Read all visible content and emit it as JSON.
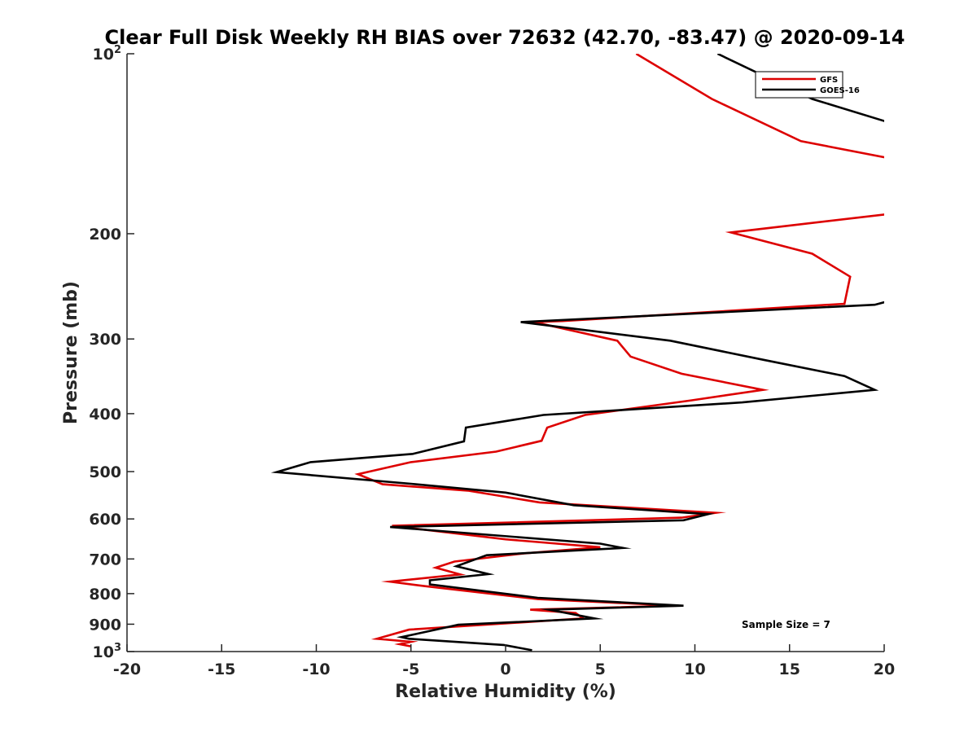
{
  "chart_data": {
    "type": "line",
    "title": "Clear Full Disk Weekly RH BIAS over 72632 (42.70, -83.47) @ 2020-09-14",
    "xlabel": "Relative Humidity (%)",
    "ylabel": "Pressure (mb)",
    "xlim": [
      -20,
      20
    ],
    "ylim": [
      100,
      1000
    ],
    "y_scale": "log",
    "y_reversed": true,
    "x_ticks": [
      "-20",
      "-15",
      "-10",
      "-5",
      "0",
      "5",
      "10",
      "15",
      "20"
    ],
    "y_ticks": [
      {
        "value": 100,
        "base": "10",
        "exp": "2"
      },
      {
        "value": 200,
        "label": "200"
      },
      {
        "value": 300,
        "label": "300"
      },
      {
        "value": 400,
        "label": "400"
      },
      {
        "value": 500,
        "label": "500"
      },
      {
        "value": 600,
        "label": "600"
      },
      {
        "value": 700,
        "label": "700"
      },
      {
        "value": 800,
        "label": "800"
      },
      {
        "value": 900,
        "label": "900"
      },
      {
        "value": 1000,
        "base": "10",
        "exp": "3"
      }
    ],
    "legend_position": "top-right",
    "annotation": "Sample Size = 7",
    "series": [
      {
        "name": "GFS",
        "color": "#dd0000",
        "points": [
          [
            6.9,
            100
          ],
          [
            10.9,
            119
          ],
          [
            15.6,
            140
          ],
          [
            20.5,
            150
          ],
          [
            20.5,
            185
          ],
          [
            11.9,
            199
          ],
          [
            16.2,
            216
          ],
          [
            18.2,
            236
          ],
          [
            17.9,
            262
          ],
          [
            3.0,
            280
          ],
          [
            1.5,
            281
          ],
          [
            5.9,
            302
          ],
          [
            6.6,
            321
          ],
          [
            9.3,
            343
          ],
          [
            13.6,
            365
          ],
          [
            9.8,
            380
          ],
          [
            4.2,
            402
          ],
          [
            2.2,
            422
          ],
          [
            1.9,
            444
          ],
          [
            -0.5,
            463
          ],
          [
            -5.0,
            482
          ],
          [
            -7.8,
            505
          ],
          [
            -6.5,
            525
          ],
          [
            -2.0,
            538
          ],
          [
            1.8,
            563
          ],
          [
            11.1,
            586
          ],
          [
            9.3,
            597
          ],
          [
            -6.0,
            616
          ],
          [
            0.0,
            649
          ],
          [
            5.0,
            669
          ],
          [
            1.0,
            685
          ],
          [
            -2.7,
            707
          ],
          [
            -3.7,
            724
          ],
          [
            -2.4,
            743
          ],
          [
            -6.1,
            764
          ],
          [
            -4.3,
            777
          ],
          [
            1.7,
            817
          ],
          [
            9.1,
            838
          ],
          [
            1.3,
            851
          ],
          [
            3.7,
            862
          ],
          [
            4.1,
            880
          ],
          [
            -5.1,
            919
          ],
          [
            -6.8,
            952
          ],
          [
            -5.0,
            963
          ],
          [
            -5.6,
            972
          ],
          [
            -5.0,
            980
          ]
        ]
      },
      {
        "name": "GOES-16",
        "color": "#000000",
        "points": [
          [
            11.2,
            100
          ],
          [
            16.2,
            119
          ],
          [
            20.5,
            131
          ],
          [
            20.5,
            258
          ],
          [
            19.5,
            263
          ],
          [
            0.8,
            281
          ],
          [
            8.7,
            302
          ],
          [
            13.6,
            325
          ],
          [
            17.9,
            346
          ],
          [
            19.5,
            365
          ],
          [
            12.5,
            383
          ],
          [
            2.0,
            402
          ],
          [
            -2.1,
            422
          ],
          [
            -2.2,
            445
          ],
          [
            -4.9,
            467
          ],
          [
            -10.3,
            482
          ],
          [
            -12.1,
            501
          ],
          [
            -5.0,
            524
          ],
          [
            0.0,
            542
          ],
          [
            3.6,
            569
          ],
          [
            10.7,
            589
          ],
          [
            9.4,
            603
          ],
          [
            -6.1,
            619
          ],
          [
            5.0,
            660
          ],
          [
            6.2,
            671
          ],
          [
            -1.0,
            690
          ],
          [
            -2.6,
            720
          ],
          [
            -0.9,
            742
          ],
          [
            -4.0,
            760
          ],
          [
            -4.0,
            772
          ],
          [
            1.7,
            813
          ],
          [
            9.4,
            838
          ],
          [
            2.3,
            851
          ],
          [
            4.7,
            880
          ],
          [
            -2.5,
            902
          ],
          [
            -5.5,
            946
          ],
          [
            -5.1,
            952
          ],
          [
            -0.1,
            975
          ],
          [
            1.4,
            995
          ]
        ]
      }
    ]
  }
}
